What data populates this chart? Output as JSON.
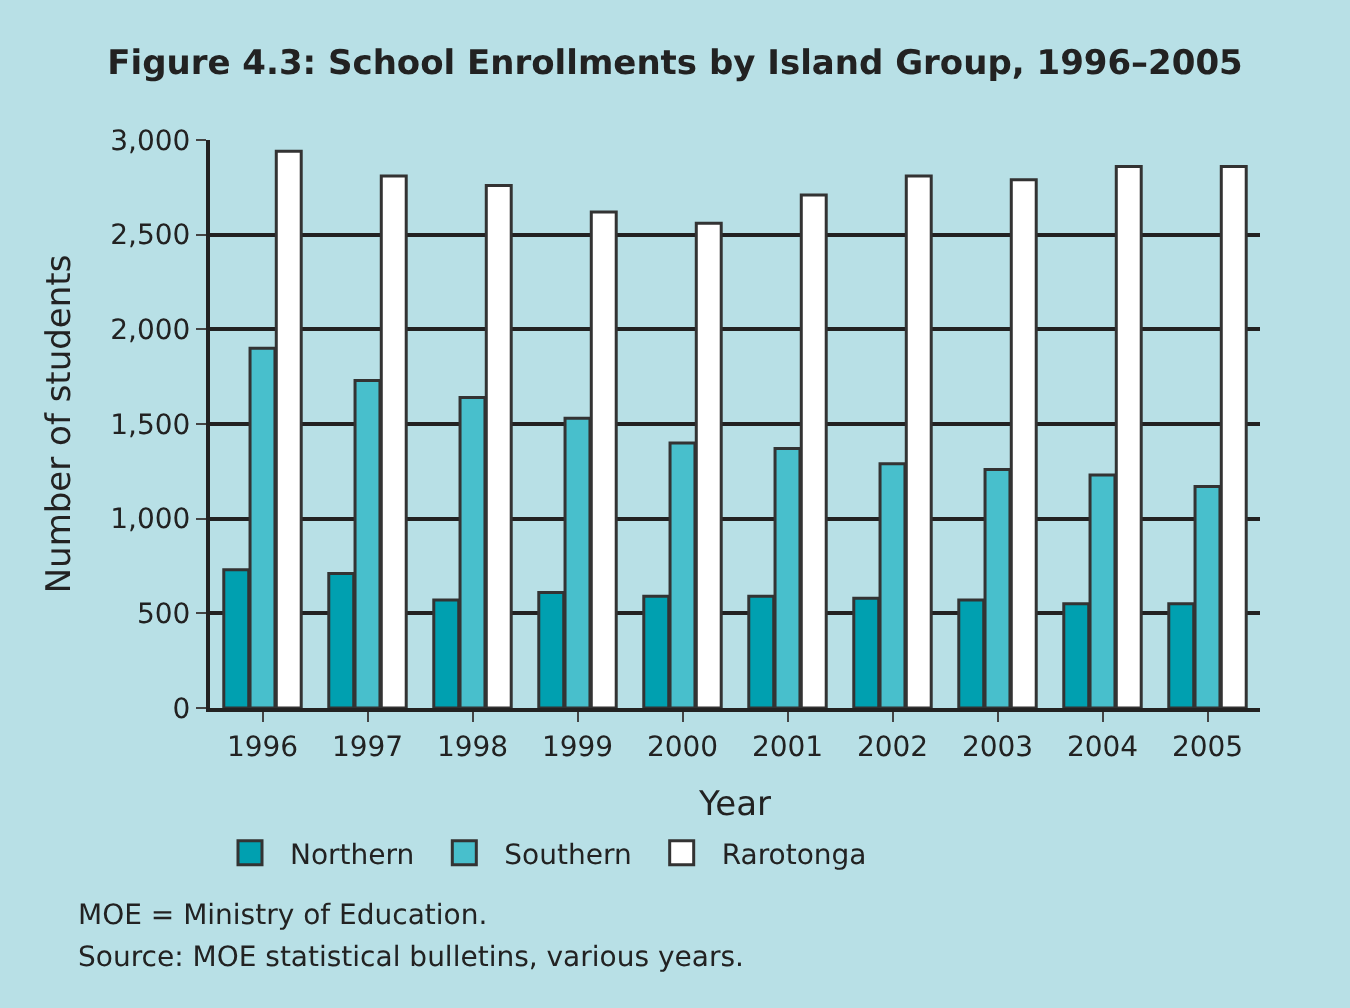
{
  "chart_data": {
    "type": "bar",
    "title": "Figure 4.3: School Enrollments by Island Group, 1996–2005",
    "xlabel": "Year",
    "ylabel": "Number of students",
    "categories": [
      "1996",
      "1997",
      "1998",
      "1999",
      "2000",
      "2001",
      "2002",
      "2003",
      "2004",
      "2005"
    ],
    "series": [
      {
        "name": "Northern",
        "color": "#00a0b0",
        "values": [
          730,
          710,
          570,
          610,
          590,
          590,
          580,
          570,
          550,
          550
        ]
      },
      {
        "name": "Southern",
        "color": "#48bfcc",
        "values": [
          1900,
          1730,
          1640,
          1530,
          1400,
          1370,
          1290,
          1260,
          1230,
          1170
        ]
      },
      {
        "name": "Rarotonga",
        "color": "#ffffff",
        "values": [
          2940,
          2810,
          2760,
          2620,
          2560,
          2710,
          2810,
          2790,
          2860,
          2860
        ]
      }
    ],
    "ylim": [
      0,
      3000
    ],
    "yticks": [
      0,
      {
        "value": 500,
        "label": "500"
      },
      {
        "value": 1000,
        "label": "1,000"
      },
      {
        "value": 1500,
        "label": "1,500"
      },
      {
        "value": 2000,
        "label": "2,000"
      },
      {
        "value": 2500,
        "label": "2,500"
      },
      {
        "value": 3000,
        "label": "3,000"
      }
    ],
    "grid": "y",
    "legend": "bottom",
    "annotations": [
      "MOE = Ministry of Education.",
      "Source: MOE statistical bulletins, various years."
    ]
  }
}
